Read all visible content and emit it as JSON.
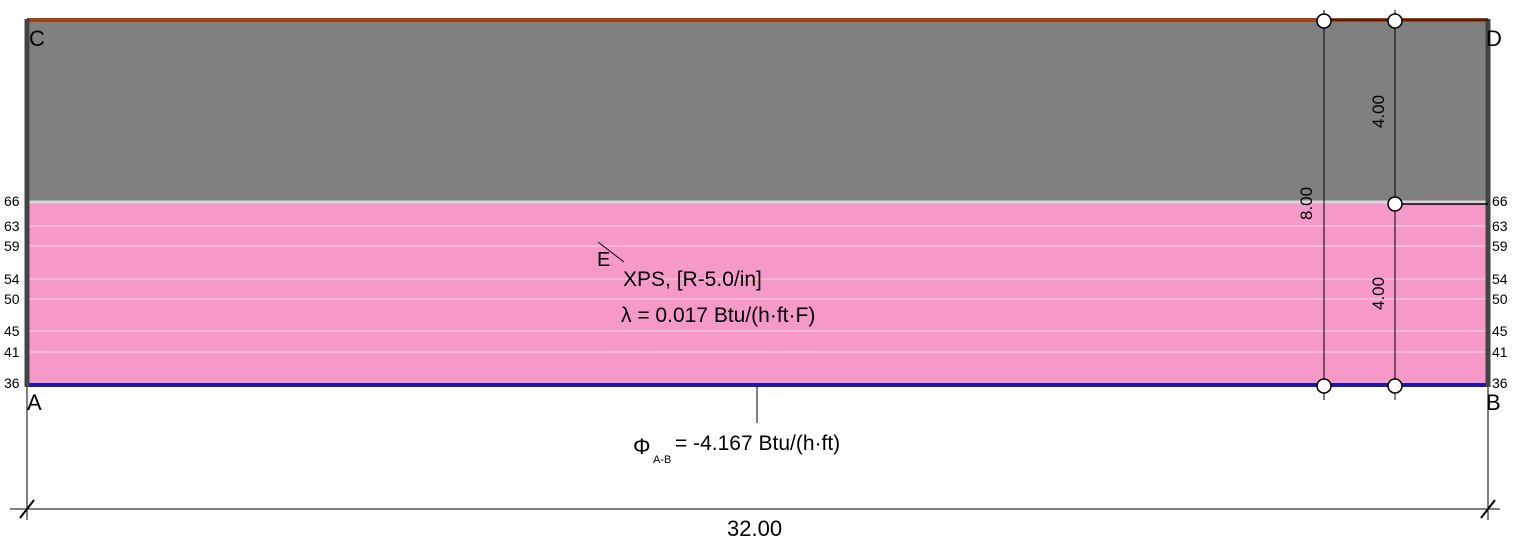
{
  "corners": {
    "a": "A",
    "b": "B",
    "c": "C",
    "d": "D"
  },
  "material": {
    "name": "XPS, [R-5.0/in]",
    "conductivity_label": "λ = 0.017 Btu/(h·ft·F)",
    "marker": "E"
  },
  "heat_flow": {
    "symbol": "Φ",
    "subscript": "A-B",
    "value_text": "= -4.167 Btu/(h·ft)"
  },
  "dimensions": {
    "total_width": "32.00",
    "total_height": "8.00",
    "upper_height": "4.00",
    "lower_height": "4.00"
  },
  "isotherms": {
    "labels": [
      "66",
      "63",
      "59",
      "54",
      "50",
      "45",
      "41",
      "36"
    ]
  },
  "colors": {
    "upper_layer": "#808080",
    "xps_layer": "#f599c8",
    "top_boundary": "#a0421a",
    "bottom_boundary": "#1a1aa8",
    "side_boundary": "#444444"
  }
}
